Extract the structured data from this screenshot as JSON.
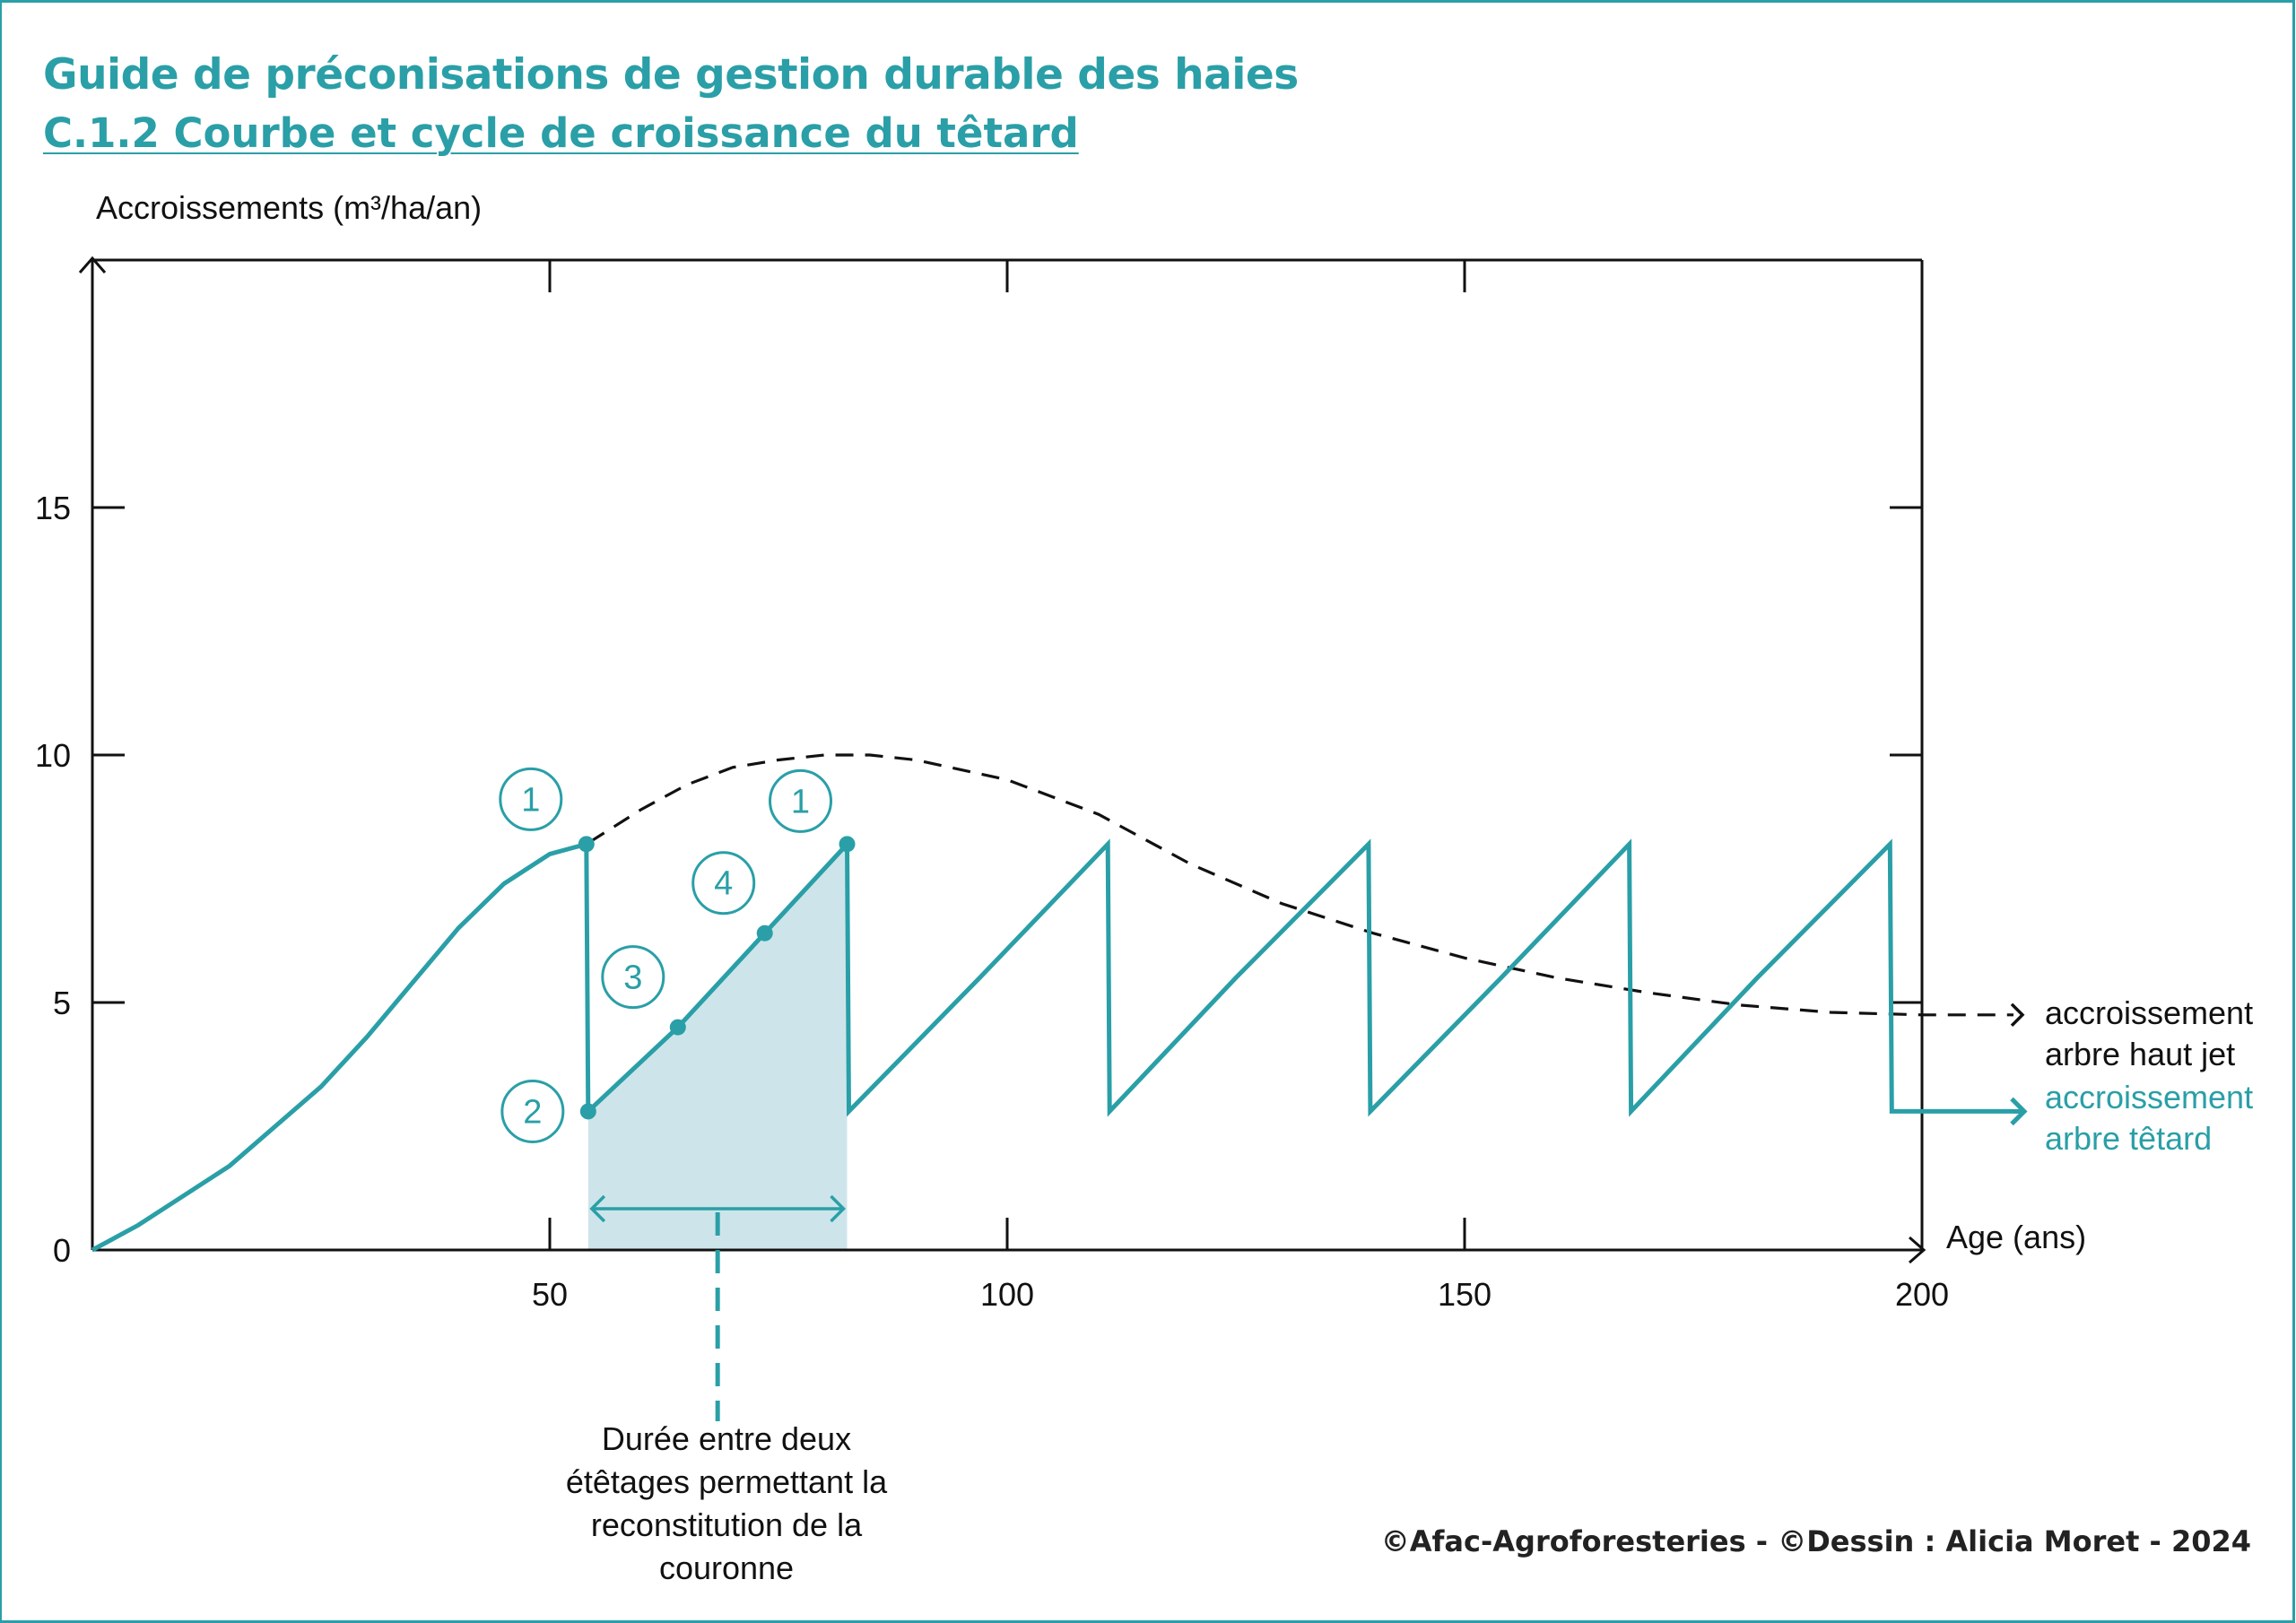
{
  "header": {
    "title": "Guide de préconisations de gestion durable des haies",
    "subtitle": "C.1.2  Courbe et cycle de croissance du têtard"
  },
  "colors": {
    "accent": "#2a9fa7",
    "shade": "#cde5ea",
    "reference_line": "#111111",
    "text": "#111111"
  },
  "chart_data": {
    "type": "line",
    "xlabel": "Age (ans)",
    "ylabel": "Accroissements (m³/ha/an)",
    "xlim": [
      0,
      200
    ],
    "ylim": [
      0,
      20
    ],
    "x_ticks": [
      50,
      100,
      150,
      200
    ],
    "y_ticks": [
      0,
      5,
      10,
      15
    ],
    "grid": false,
    "series": [
      {
        "name": "accroissement arbre haut jet",
        "line_style": "dashed",
        "line_label": [
          "accroissement",
          "arbre haut jet"
        ],
        "points": [
          [
            0,
            0
          ],
          [
            5,
            0.5
          ],
          [
            10,
            1.1
          ],
          [
            15,
            1.7
          ],
          [
            20,
            2.5
          ],
          [
            25,
            3.3
          ],
          [
            30,
            4.3
          ],
          [
            35,
            5.4
          ],
          [
            40,
            6.5
          ],
          [
            45,
            7.4
          ],
          [
            50,
            8.0
          ],
          [
            54,
            8.2
          ],
          [
            60,
            8.9
          ],
          [
            65,
            9.4
          ],
          [
            70,
            9.75
          ],
          [
            75,
            9.9
          ],
          [
            80,
            10.0
          ],
          [
            85,
            10.0
          ],
          [
            90,
            9.9
          ],
          [
            100,
            9.5
          ],
          [
            110,
            8.8
          ],
          [
            120,
            7.8
          ],
          [
            130,
            7.0
          ],
          [
            140,
            6.4
          ],
          [
            150,
            5.9
          ],
          [
            160,
            5.5
          ],
          [
            170,
            5.2
          ],
          [
            180,
            4.95
          ],
          [
            190,
            4.8
          ],
          [
            200,
            4.75
          ],
          [
            210,
            4.75
          ]
        ]
      },
      {
        "name": "accroissement arbre têtard",
        "line_style": "solid",
        "line_label": [
          "accroissement",
          "arbre têtard"
        ],
        "points": [
          [
            0,
            0
          ],
          [
            5,
            0.5
          ],
          [
            10,
            1.1
          ],
          [
            15,
            1.7
          ],
          [
            20,
            2.5
          ],
          [
            25,
            3.3
          ],
          [
            30,
            4.3
          ],
          [
            35,
            5.4
          ],
          [
            40,
            6.5
          ],
          [
            45,
            7.4
          ],
          [
            50,
            8.0
          ],
          [
            54,
            8.2
          ],
          [
            54.2,
            2.8
          ],
          [
            64,
            4.5
          ],
          [
            73.5,
            6.4
          ],
          [
            82.5,
            8.2
          ],
          [
            82.7,
            2.8
          ],
          [
            97,
            5.5
          ],
          [
            111,
            8.2
          ],
          [
            111.2,
            2.8
          ],
          [
            125,
            5.5
          ],
          [
            139.5,
            8.2
          ],
          [
            139.7,
            2.8
          ],
          [
            154,
            5.5
          ],
          [
            168,
            8.2
          ],
          [
            168.2,
            2.8
          ],
          [
            182,
            5.5
          ],
          [
            196.5,
            8.2
          ],
          [
            196.7,
            2.8
          ],
          [
            210,
            2.8
          ]
        ]
      }
    ],
    "annotations": {
      "numbered_points": [
        {
          "label": "1",
          "x": 54,
          "y": 8.2
        },
        {
          "label": "2",
          "x": 54.2,
          "y": 2.8
        },
        {
          "label": "3",
          "x": 64,
          "y": 4.5
        },
        {
          "label": "4",
          "x": 73.5,
          "y": 6.4
        },
        {
          "label": "1",
          "x": 82.5,
          "y": 8.2
        }
      ],
      "shaded_interval": [
        54.2,
        82.5
      ],
      "interval_note": [
        "Durée entre deux",
        "étêtages permettant la",
        "reconstitution de la",
        "couronne"
      ]
    }
  },
  "footer": {
    "credit": "©Afac-Agroforesteries - ©Dessin : Alicia Moret - 2024"
  }
}
